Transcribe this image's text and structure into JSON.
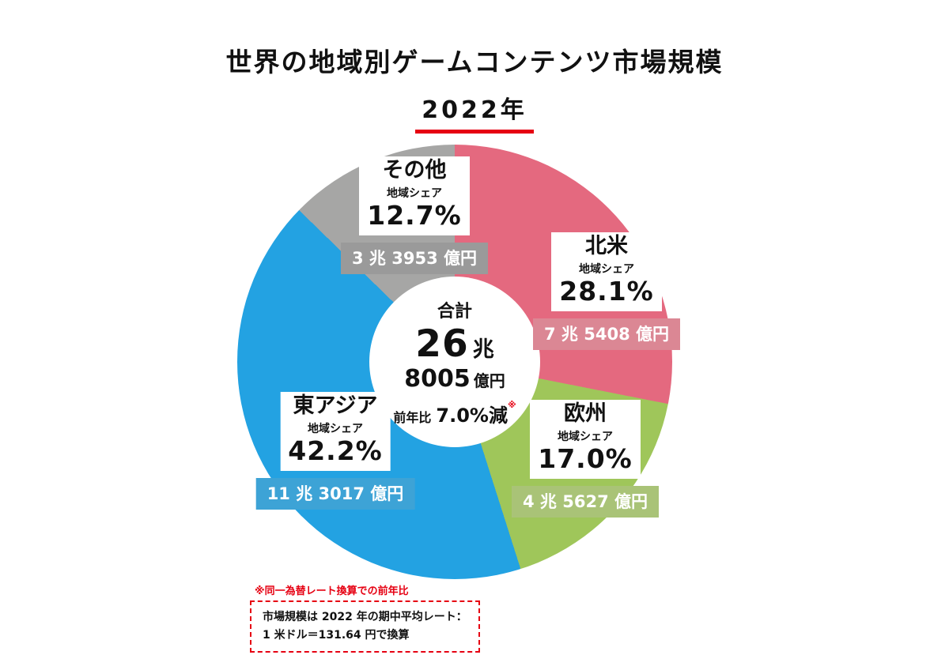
{
  "theme": {
    "accent_red": "#e60012",
    "text_color": "#111111",
    "background": "#ffffff"
  },
  "chart_data": {
    "type": "pie",
    "donut": true,
    "title": "世界の地域別ゲームコンテンツ市場規模",
    "subtitle": "2022年",
    "unit": "億円",
    "start_angle_deg": 0,
    "direction": "clockwise",
    "total": {
      "label": "合計",
      "cho_value": "26",
      "cho_unit": "兆",
      "oku_value": "8005",
      "oku_unit": "億円",
      "total_okuyen": 268005,
      "yoy_label": "前年比",
      "yoy_value": "7.0%減",
      "yoy_mark": "※"
    },
    "segments": [
      {
        "name": "北米",
        "share_caption": "地域シェア",
        "share_percent": 28.1,
        "share_text": "28.1%",
        "amount_text": "7 兆 5408 億円",
        "amount_okuyen": 75408,
        "color": "#e4697f",
        "box_color": "#db8794"
      },
      {
        "name": "欧州",
        "share_caption": "地域シェア",
        "share_percent": 17.0,
        "share_text": "17.0%",
        "amount_text": "4 兆 5627 億円",
        "amount_okuyen": 45627,
        "color": "#9fc65a",
        "box_color": "#a9c377"
      },
      {
        "name": "東アジア",
        "share_caption": "地域シェア",
        "share_percent": 42.2,
        "share_text": "42.2%",
        "amount_text": "11 兆 3017 億円",
        "amount_okuyen": 113017,
        "color": "#23a2e2",
        "box_color": "#3da3d6"
      },
      {
        "name": "その他",
        "share_caption": "地域シェア",
        "share_percent": 12.7,
        "share_text": "12.7%",
        "amount_text": "3 兆 3953 億円",
        "amount_okuyen": 33953,
        "color": "#a6a6a5",
        "box_color": "#9a9a9a"
      }
    ]
  },
  "footnotes": {
    "rate_note": "※同一為替レート換算での前年比",
    "box_line1": "市場規模は 2022 年の期中平均レート：",
    "box_line2": "1 米ドル＝131.64 円で換算"
  }
}
